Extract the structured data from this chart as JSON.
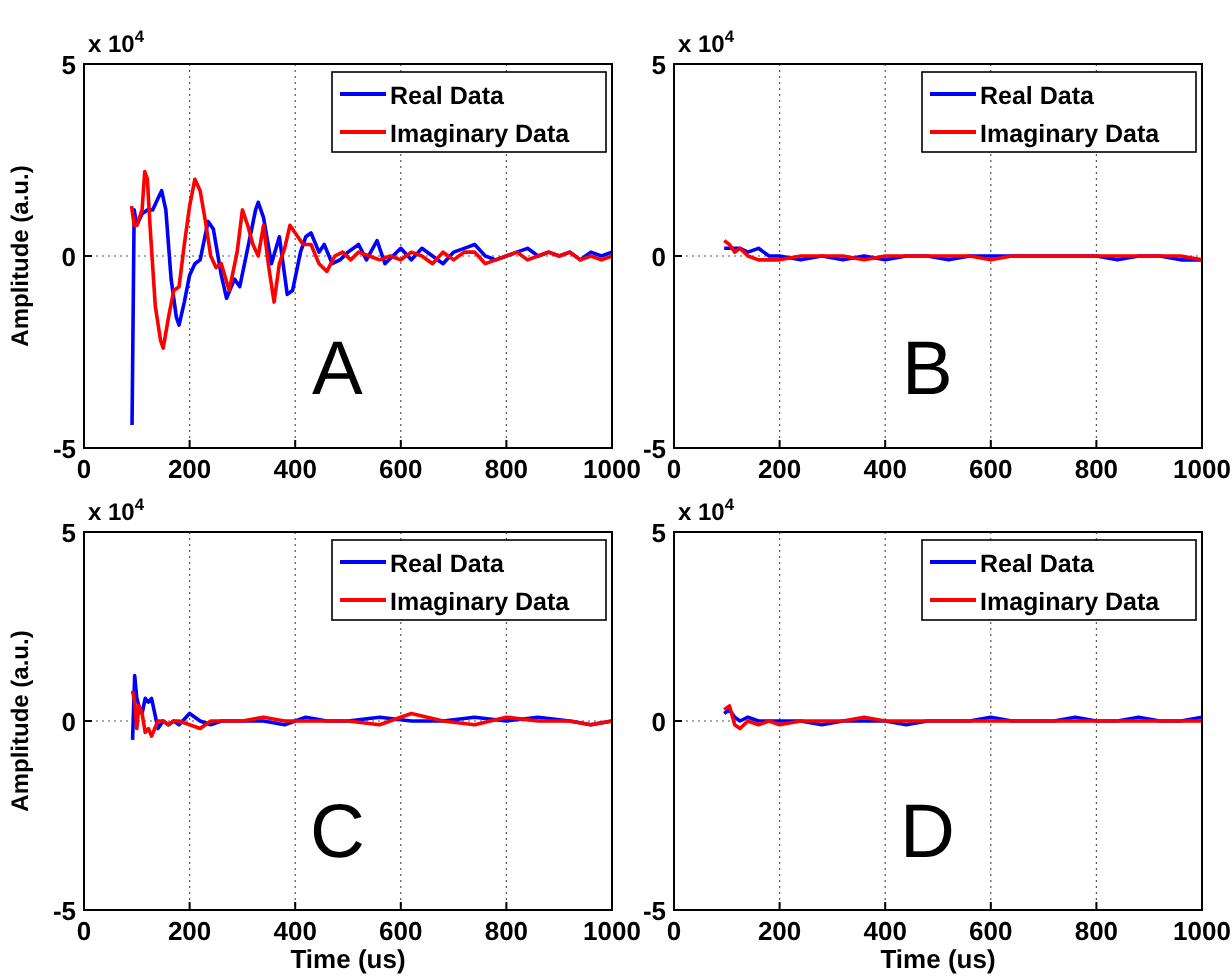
{
  "chart_data": [
    {
      "type": "line",
      "ylabel": "Amplitude (a.u.)",
      "annotations": [
        "x 10$^{4}$",
        "A"
      ],
      "xlim": [
        0,
        1000
      ],
      "xticks": [
        0,
        200,
        400,
        600,
        800,
        1000
      ],
      "ylim": [
        -5,
        5
      ],
      "yticks": [
        -5,
        0,
        5
      ],
      "grid": true,
      "legend": "top right",
      "series": [
        {
          "name": "Real Data",
          "color": "#0000ff",
          "x": [
            91,
            95,
            100,
            110,
            120,
            130,
            140,
            147,
            155,
            165,
            175,
            180,
            190,
            200,
            210,
            220,
            235,
            245,
            260,
            270,
            285,
            295,
            310,
            325,
            330,
            340,
            355,
            370,
            385,
            395,
            410,
            420,
            430,
            445,
            455,
            470,
            485,
            500,
            520,
            535,
            555,
            570,
            585,
            600,
            620,
            640,
            660,
            680,
            700,
            720,
            740,
            760,
            780,
            800,
            820,
            840,
            860,
            880,
            900,
            920,
            940,
            960,
            980,
            1000
          ],
          "values": [
            -4.4,
            1.2,
            0.8,
            1.1,
            1.2,
            1.2,
            1.5,
            1.7,
            1.2,
            -0.6,
            -1.6,
            -1.8,
            -1.2,
            -0.5,
            -0.2,
            -0.1,
            0.9,
            0.7,
            -0.5,
            -1.1,
            -0.6,
            -0.8,
            0.2,
            1.2,
            1.4,
            1.0,
            -0.2,
            0.5,
            -1.0,
            -0.9,
            0.1,
            0.5,
            0.6,
            0.1,
            0.3,
            -0.2,
            -0.1,
            0.1,
            0.3,
            -0.1,
            0.4,
            -0.2,
            0,
            0.2,
            -0.1,
            0.2,
            0,
            -0.2,
            0.1,
            0.2,
            0.3,
            0,
            -0.1,
            0,
            0.1,
            0.2,
            0,
            0.1,
            0,
            0.1,
            -0.1,
            0.1,
            0,
            0.1
          ]
        },
        {
          "name": "Imaginary Data",
          "color": "#ff0000",
          "x": [
            90,
            95,
            100,
            110,
            115,
            120,
            125,
            135,
            145,
            150,
            160,
            170,
            180,
            190,
            200,
            210,
            220,
            230,
            240,
            250,
            260,
            275,
            290,
            300,
            310,
            320,
            330,
            340,
            350,
            360,
            370,
            380,
            390,
            400,
            415,
            430,
            445,
            460,
            475,
            490,
            505,
            520,
            540,
            560,
            580,
            600,
            620,
            640,
            660,
            680,
            700,
            720,
            740,
            760,
            780,
            800,
            820,
            840,
            860,
            880,
            900,
            920,
            940,
            960,
            980,
            1000
          ],
          "values": [
            1.3,
            0.8,
            0.8,
            1.2,
            2.2,
            2.0,
            0.8,
            -1.3,
            -2.2,
            -2.4,
            -1.6,
            -0.9,
            -0.8,
            0.3,
            1.3,
            2.0,
            1.7,
            0.9,
            0,
            -0.3,
            -0.2,
            -0.9,
            0.1,
            1.2,
            0.8,
            0.3,
            0,
            0.8,
            -0.3,
            -1.2,
            -0.2,
            0.2,
            0.8,
            0.6,
            0.3,
            0.3,
            -0.2,
            -0.4,
            0,
            0.1,
            -0.1,
            0.1,
            0,
            -0.1,
            0,
            -0.1,
            0.1,
            0,
            -0.2,
            0.1,
            -0.1,
            0.1,
            0.1,
            -0.2,
            -0.1,
            0,
            0.1,
            -0.1,
            0,
            0.1,
            0,
            0.1,
            -0.1,
            0,
            -0.1,
            0
          ]
        }
      ]
    },
    {
      "type": "line",
      "annotations": [
        "x 10$^{4}$",
        "B"
      ],
      "x": [
        95,
        105,
        115,
        125,
        140,
        160,
        180,
        200,
        240,
        280,
        320,
        360,
        400,
        440,
        480,
        520,
        560,
        600,
        640,
        680,
        720,
        760,
        800,
        840,
        880,
        920,
        960,
        1000
      ],
      "xlim": [
        0,
        1000
      ],
      "xticks": [
        0,
        200,
        400,
        600,
        800,
        1000
      ],
      "ylim": [
        -5,
        5
      ],
      "yticks": [
        -5,
        0,
        5
      ],
      "grid": true,
      "legend": "top right",
      "series": [
        {
          "name": "Real Data",
          "color": "#0000ff",
          "values": [
            0.2,
            0.2,
            0.2,
            0.2,
            0.1,
            0.2,
            0,
            0,
            -0.1,
            0,
            -0.1,
            0,
            -0.1,
            0,
            0,
            -0.1,
            0,
            0,
            0,
            0,
            0,
            0,
            0,
            -0.1,
            0,
            0,
            -0.1,
            -0.1
          ]
        },
        {
          "name": "Imaginary Data",
          "color": "#ff0000",
          "values": [
            0.4,
            0.3,
            0.1,
            0.2,
            0,
            -0.1,
            -0.1,
            -0.1,
            0,
            0,
            0,
            -0.1,
            0,
            0,
            0,
            0,
            0,
            -0.1,
            0,
            0,
            0,
            0,
            0,
            0,
            0,
            0,
            0,
            -0.1
          ]
        }
      ]
    },
    {
      "type": "line",
      "xlabel": "Time (us)",
      "ylabel": "Amplitude (a.u.)",
      "annotations": [
        "x 10$^{4}$",
        "C"
      ],
      "x": [
        92,
        96,
        100,
        104,
        110,
        116,
        122,
        128,
        134,
        140,
        150,
        160,
        170,
        180,
        200,
        220,
        240,
        260,
        300,
        340,
        380,
        420,
        460,
        500,
        560,
        620,
        680,
        740,
        800,
        860,
        920,
        960,
        1000
      ],
      "xlim": [
        0,
        1000
      ],
      "xticks": [
        0,
        200,
        400,
        600,
        800,
        1000
      ],
      "ylim": [
        -5,
        5
      ],
      "yticks": [
        -5,
        0,
        5
      ],
      "grid": true,
      "legend": "top right",
      "series": [
        {
          "name": "Real Data",
          "color": "#0000ff",
          "values": [
            -0.5,
            1.2,
            0.6,
            0.4,
            0.2,
            0.6,
            0.5,
            0.6,
            0.2,
            -0.2,
            0,
            -0.1,
            0,
            -0.1,
            0.2,
            0,
            -0.1,
            0,
            0,
            0,
            -0.1,
            0.1,
            0,
            0,
            0.1,
            0,
            0,
            0.1,
            0,
            0.1,
            0,
            -0.1,
            0
          ]
        },
        {
          "name": "Imaginary Data",
          "color": "#ff0000",
          "values": [
            0.8,
            0.5,
            -0.2,
            0.4,
            0.2,
            -0.3,
            -0.2,
            -0.4,
            -0.2,
            0,
            0,
            -0.1,
            0,
            0,
            -0.1,
            -0.2,
            0,
            0,
            0,
            0.1,
            0,
            0,
            0,
            0,
            -0.1,
            0.2,
            0,
            -0.1,
            0.1,
            0,
            0,
            -0.1,
            0
          ]
        }
      ]
    },
    {
      "type": "line",
      "xlabel": "Time (us)",
      "annotations": [
        "x 10$^{4}$",
        "D"
      ],
      "x": [
        95,
        105,
        115,
        125,
        140,
        160,
        180,
        200,
        240,
        280,
        320,
        360,
        400,
        440,
        480,
        520,
        560,
        600,
        640,
        680,
        720,
        760,
        800,
        840,
        880,
        920,
        960,
        1000
      ],
      "xlim": [
        0,
        1000
      ],
      "xticks": [
        0,
        200,
        400,
        600,
        800,
        1000
      ],
      "ylim": [
        -5,
        5
      ],
      "yticks": [
        -5,
        0,
        5
      ],
      "grid": true,
      "legend": "top right",
      "series": [
        {
          "name": "Real Data",
          "color": "#0000ff",
          "values": [
            0.2,
            0.3,
            0.1,
            0,
            0.1,
            0,
            0,
            0,
            0,
            -0.1,
            0,
            0,
            0,
            -0.1,
            0,
            0,
            0,
            0.1,
            0,
            0,
            0,
            0.1,
            0,
            0,
            0.1,
            0,
            0,
            0.1
          ]
        },
        {
          "name": "Imaginary Data",
          "color": "#ff0000",
          "values": [
            0.3,
            0.4,
            -0.1,
            -0.2,
            0,
            -0.1,
            0,
            -0.1,
            0,
            0,
            0,
            0.1,
            0,
            0,
            0,
            0,
            0,
            0,
            0,
            0,
            0,
            0,
            0,
            0,
            0,
            0,
            0,
            0
          ]
        }
      ]
    }
  ]
}
